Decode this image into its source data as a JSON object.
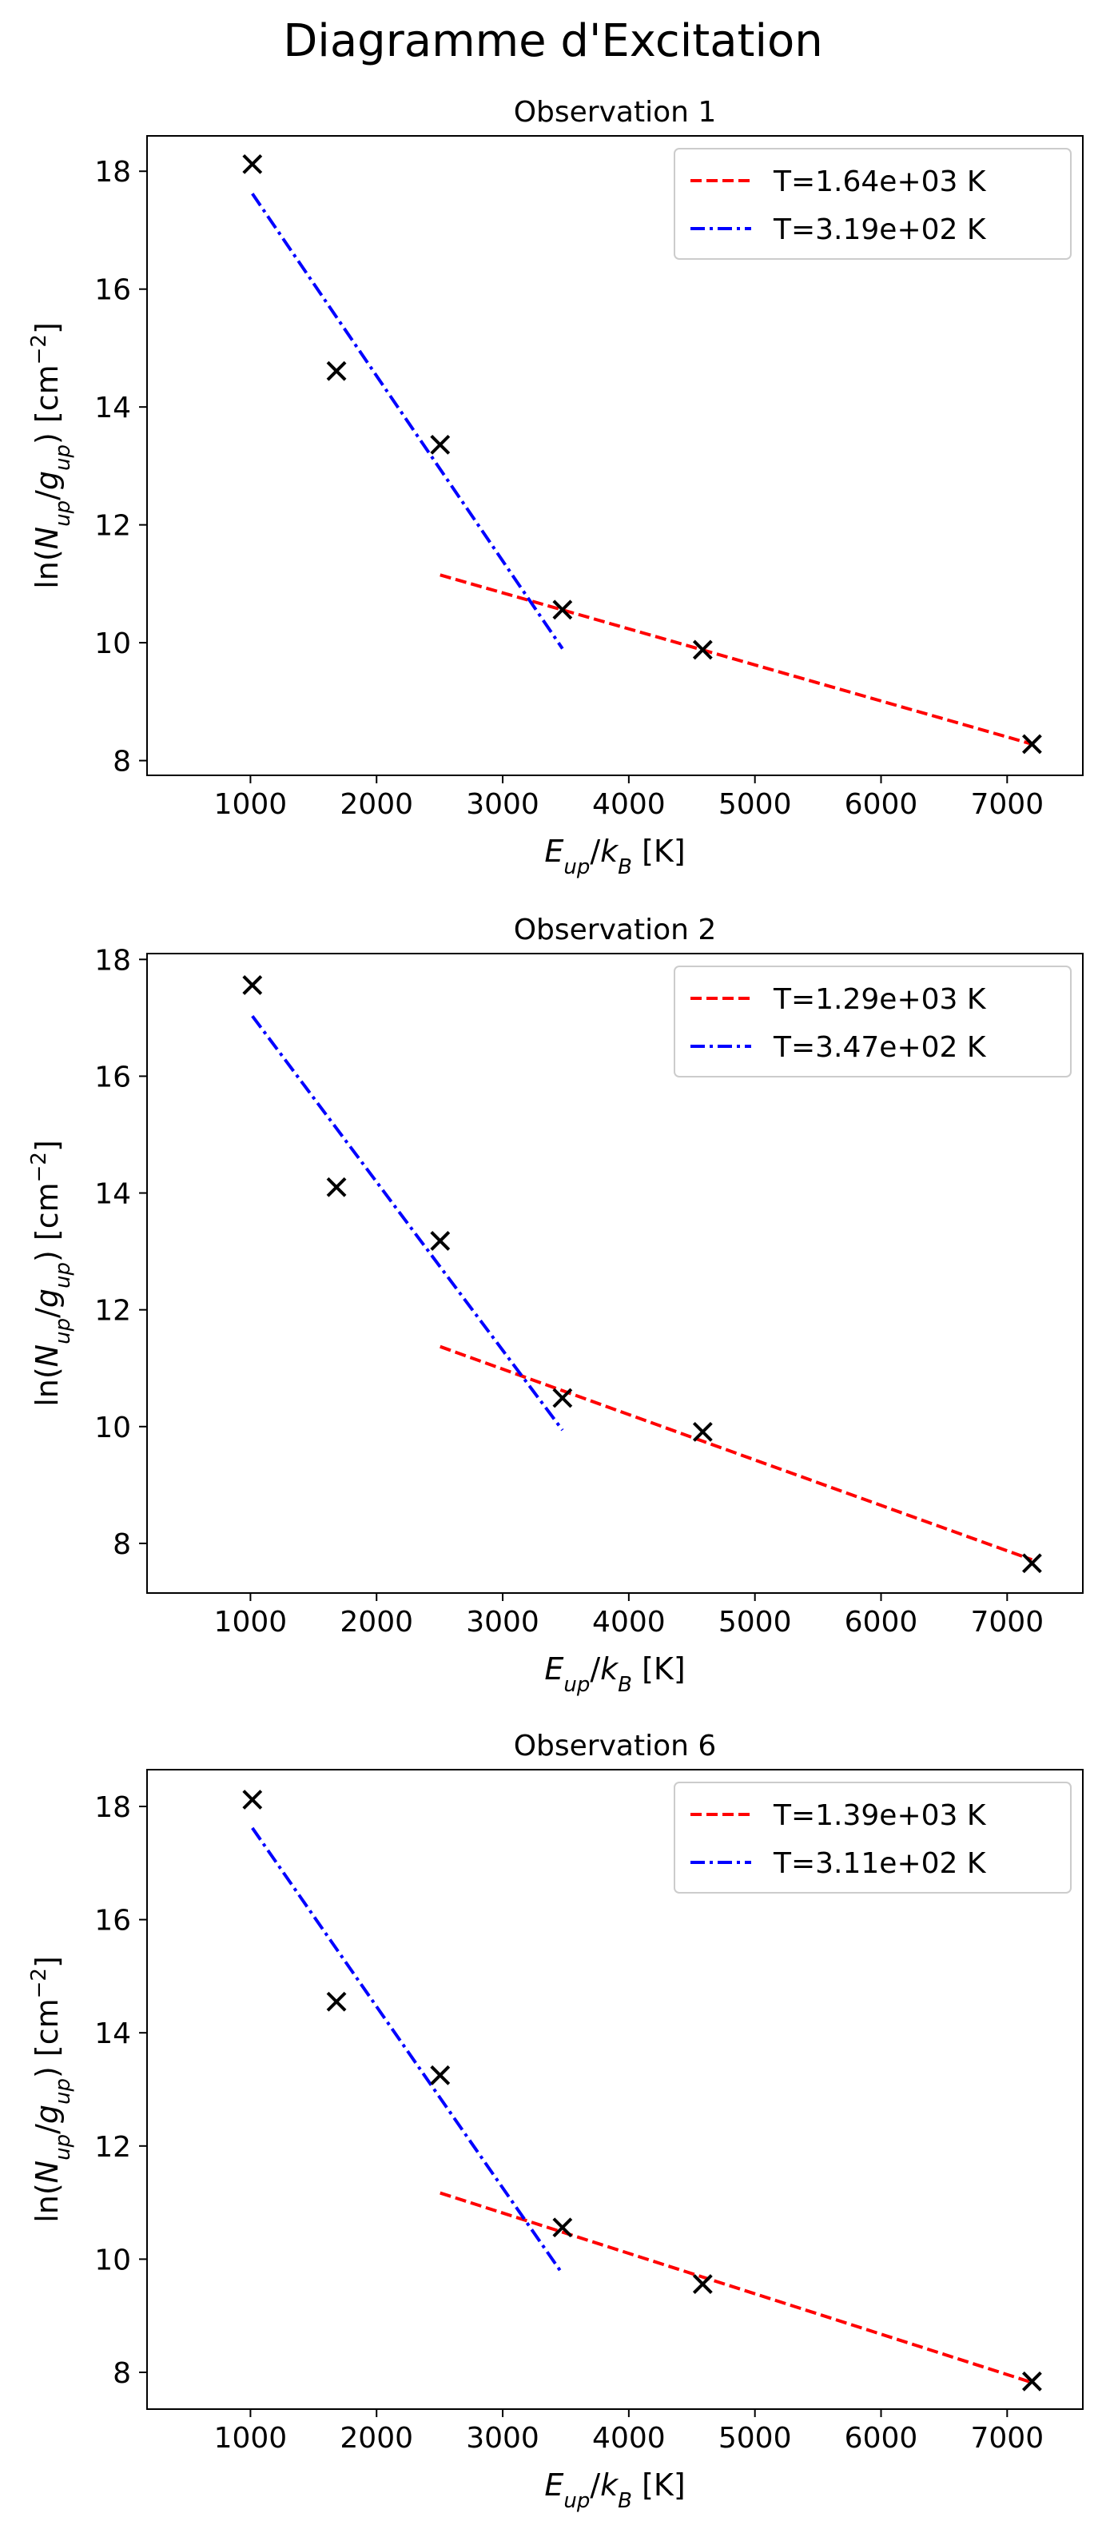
{
  "figure": {
    "title": "Diagramme d'Excitation"
  },
  "chart_data": [
    {
      "type": "scatter",
      "title": "Observation 1",
      "xlabel": "E_up/k_B [K]",
      "ylabel": "ln(N_up/g_up) [cm^-2]",
      "xlim": [
        180,
        7600
      ],
      "ylim": [
        7.75,
        18.6
      ],
      "xticks": [
        1000,
        2000,
        3000,
        4000,
        5000,
        6000,
        7000
      ],
      "yticks": [
        8,
        10,
        12,
        14,
        16,
        18
      ],
      "grid": false,
      "legend_position": "top-right",
      "points": {
        "x": [
          1015,
          1682,
          2504,
          3474,
          4586,
          7197
        ],
        "y": [
          18.12,
          14.61,
          13.36,
          10.56,
          9.88,
          8.28
        ],
        "marker": "x",
        "color": "#000000"
      },
      "fits": [
        {
          "name": "T=1.64e+03 K",
          "x": [
            2504,
            7197
          ],
          "y": [
            11.15,
            8.28
          ],
          "color": "#ff0000",
          "dash": "dashed"
        },
        {
          "name": "T=3.19e+02 K",
          "x": [
            1015,
            3474
          ],
          "y": [
            17.62,
            9.9
          ],
          "color": "#0000ff",
          "dash": "dashdot"
        }
      ]
    },
    {
      "type": "scatter",
      "title": "Observation 2",
      "xlabel": "E_up/k_B [K]",
      "ylabel": "ln(N_up/g_up) [cm^-2]",
      "xlim": [
        180,
        7600
      ],
      "ylim": [
        7.15,
        18.1
      ],
      "xticks": [
        1000,
        2000,
        3000,
        4000,
        5000,
        6000,
        7000
      ],
      "yticks": [
        8,
        10,
        12,
        14,
        16,
        18
      ],
      "grid": false,
      "legend_position": "top-right",
      "points": {
        "x": [
          1015,
          1682,
          2504,
          3474,
          4586,
          7197
        ],
        "y": [
          17.56,
          14.1,
          13.18,
          10.49,
          9.91,
          7.66
        ],
        "marker": "x",
        "color": "#000000"
      },
      "fits": [
        {
          "name": "T=1.29e+03 K",
          "x": [
            2504,
            7197
          ],
          "y": [
            11.37,
            7.72
          ],
          "color": "#ff0000",
          "dash": "dashed"
        },
        {
          "name": "T=3.47e+02 K",
          "x": [
            1015,
            3474
          ],
          "y": [
            17.03,
            9.94
          ],
          "color": "#0000ff",
          "dash": "dashdot"
        }
      ]
    },
    {
      "type": "scatter",
      "title": "Observation 6",
      "xlabel": "E_up/k_B [K]",
      "ylabel": "ln(N_up/g_up) [cm^-2]",
      "xlim": [
        180,
        7600
      ],
      "ylim": [
        7.35,
        18.65
      ],
      "xticks": [
        1000,
        2000,
        3000,
        4000,
        5000,
        6000,
        7000
      ],
      "yticks": [
        8,
        10,
        12,
        14,
        16,
        18
      ],
      "grid": false,
      "legend_position": "top-right",
      "points": {
        "x": [
          1015,
          1682,
          2504,
          3474,
          4586,
          7197
        ],
        "y": [
          18.12,
          14.55,
          13.25,
          10.56,
          9.56,
          7.84
        ],
        "marker": "x",
        "color": "#000000"
      },
      "fits": [
        {
          "name": "T=1.39e+03 K",
          "x": [
            2504,
            7197
          ],
          "y": [
            11.17,
            7.82
          ],
          "color": "#ff0000",
          "dash": "dashed"
        },
        {
          "name": "T=3.11e+02 K",
          "x": [
            1015,
            3474
          ],
          "y": [
            17.62,
            9.74
          ],
          "color": "#0000ff",
          "dash": "dashdot"
        }
      ]
    }
  ]
}
